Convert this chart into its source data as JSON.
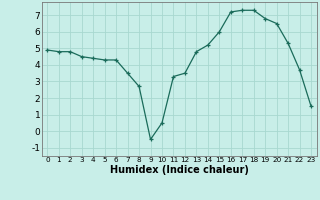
{
  "x": [
    0,
    1,
    2,
    3,
    4,
    5,
    6,
    7,
    8,
    9,
    10,
    11,
    12,
    13,
    14,
    15,
    16,
    17,
    18,
    19,
    20,
    21,
    22,
    23
  ],
  "y": [
    4.9,
    4.8,
    4.8,
    4.5,
    4.4,
    4.3,
    4.3,
    3.5,
    2.7,
    -0.5,
    0.5,
    3.3,
    3.5,
    4.8,
    5.2,
    6.0,
    7.2,
    7.3,
    7.3,
    6.8,
    6.5,
    5.3,
    3.7,
    1.5
  ],
  "xlabel": "Humidex (Indice chaleur)",
  "line_color": "#1a6b5a",
  "marker": "+",
  "bg_color": "#c8eee8",
  "grid_color": "#a8d8d0",
  "ylim": [
    -1.5,
    7.8
  ],
  "xlim": [
    -0.5,
    23.5
  ],
  "yticks": [
    -1,
    0,
    1,
    2,
    3,
    4,
    5,
    6,
    7
  ],
  "xticks": [
    0,
    1,
    2,
    3,
    4,
    5,
    6,
    7,
    8,
    9,
    10,
    11,
    12,
    13,
    14,
    15,
    16,
    17,
    18,
    19,
    20,
    21,
    22,
    23
  ]
}
